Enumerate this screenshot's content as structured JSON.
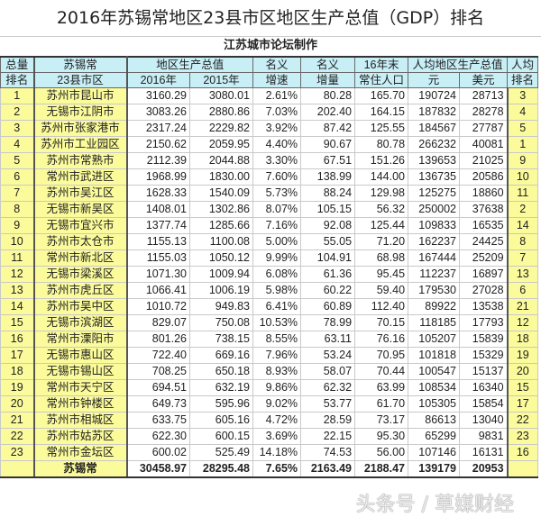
{
  "title": "2016年苏锡常地区23县市区地区生产总值（GDP）排名",
  "subtitle": "江苏城市论坛制作",
  "headers": {
    "rank": [
      "总量",
      "排名"
    ],
    "name": [
      "苏锡常",
      "23县市区"
    ],
    "gdp": "地区生产总值",
    "y2016": "2016年",
    "y2015": "2015年",
    "rate": [
      "名义",
      "增速"
    ],
    "incr": [
      "名义",
      "增量"
    ],
    "pop": [
      "16年末",
      "常住人口"
    ],
    "percap": "人均地区生产总值",
    "yuan": "元",
    "usd": "美元",
    "prank": [
      "人均",
      "排名"
    ]
  },
  "rows": [
    [
      "1",
      "苏州市昆山市",
      "3160.29",
      "3080.01",
      "2.61%",
      "80.28",
      "165.70",
      "190724",
      "28713",
      "3"
    ],
    [
      "2",
      "无锡市江阴市",
      "3083.26",
      "2880.86",
      "7.03%",
      "202.40",
      "164.15",
      "187832",
      "28278",
      "4"
    ],
    [
      "3",
      "苏州市张家港市",
      "2317.24",
      "2229.82",
      "3.92%",
      "87.42",
      "125.55",
      "184567",
      "27787",
      "5"
    ],
    [
      "4",
      "苏州市工业园区",
      "2150.62",
      "2059.95",
      "4.40%",
      "90.67",
      "80.78",
      "266232",
      "40081",
      "1"
    ],
    [
      "5",
      "苏州市常熟市",
      "2112.39",
      "2044.88",
      "3.30%",
      "67.51",
      "151.26",
      "139653",
      "21025",
      "9"
    ],
    [
      "6",
      "常州市武进区",
      "1968.99",
      "1830.00",
      "7.60%",
      "138.99",
      "144.00",
      "136735",
      "20586",
      "10"
    ],
    [
      "7",
      "苏州市吴江区",
      "1628.33",
      "1540.09",
      "5.73%",
      "88.24",
      "129.98",
      "125275",
      "18860",
      "11"
    ],
    [
      "8",
      "无锡市新吴区",
      "1408.01",
      "1302.86",
      "8.07%",
      "105.15",
      "56.32",
      "250002",
      "37638",
      "2"
    ],
    [
      "9",
      "无锡市宜兴市",
      "1377.74",
      "1285.66",
      "7.16%",
      "92.08",
      "125.44",
      "109833",
      "16535",
      "14"
    ],
    [
      "10",
      "苏州市太仓市",
      "1155.13",
      "1100.08",
      "5.00%",
      "55.05",
      "71.20",
      "162237",
      "24425",
      "8"
    ],
    [
      "11",
      "常州市新北区",
      "1155.03",
      "1050.12",
      "9.99%",
      "104.91",
      "68.98",
      "167444",
      "25209",
      "7"
    ],
    [
      "12",
      "无锡市梁溪区",
      "1071.30",
      "1009.94",
      "6.08%",
      "61.36",
      "95.45",
      "112237",
      "16897",
      "13"
    ],
    [
      "13",
      "苏州市虎丘区",
      "1066.41",
      "1006.19",
      "5.98%",
      "60.22",
      "59.40",
      "179530",
      "27028",
      "6"
    ],
    [
      "14",
      "苏州市吴中区",
      "1010.72",
      "949.83",
      "6.41%",
      "60.89",
      "112.40",
      "89922",
      "13538",
      "21"
    ],
    [
      "15",
      "无锡市滨湖区",
      "829.07",
      "750.08",
      "10.53%",
      "78.99",
      "70.15",
      "118185",
      "17793",
      "12"
    ],
    [
      "16",
      "常州市溧阳市",
      "801.26",
      "738.15",
      "8.55%",
      "63.11",
      "76.16",
      "105207",
      "15839",
      "18"
    ],
    [
      "17",
      "无锡市惠山区",
      "722.40",
      "669.16",
      "7.96%",
      "53.24",
      "70.95",
      "101818",
      "15329",
      "19"
    ],
    [
      "18",
      "无锡市锡山区",
      "708.25",
      "650.18",
      "8.93%",
      "58.07",
      "70.44",
      "100547",
      "15137",
      "20"
    ],
    [
      "19",
      "常州市天宁区",
      "694.51",
      "632.19",
      "9.86%",
      "62.32",
      "63.99",
      "108534",
      "16340",
      "15"
    ],
    [
      "20",
      "常州市钟楼区",
      "649.73",
      "595.96",
      "9.02%",
      "53.77",
      "61.70",
      "105305",
      "15854",
      "17"
    ],
    [
      "21",
      "苏州市相城区",
      "633.75",
      "605.16",
      "4.72%",
      "28.59",
      "73.17",
      "86613",
      "13040",
      "22"
    ],
    [
      "22",
      "苏州市姑苏区",
      "622.30",
      "600.15",
      "3.69%",
      "22.15",
      "95.30",
      "65299",
      "9831",
      "23"
    ],
    [
      "23",
      "常州市金坛区",
      "600.02",
      "525.49",
      "14.18%",
      "74.53",
      "56.00",
      "107146",
      "16131",
      "16"
    ]
  ],
  "total": [
    "",
    "苏锡常",
    "30458.97",
    "28295.48",
    "7.65%",
    "2163.49",
    "2188.47",
    "139179",
    "20953",
    ""
  ],
  "watermark": "头条号 / 草媒财经"
}
